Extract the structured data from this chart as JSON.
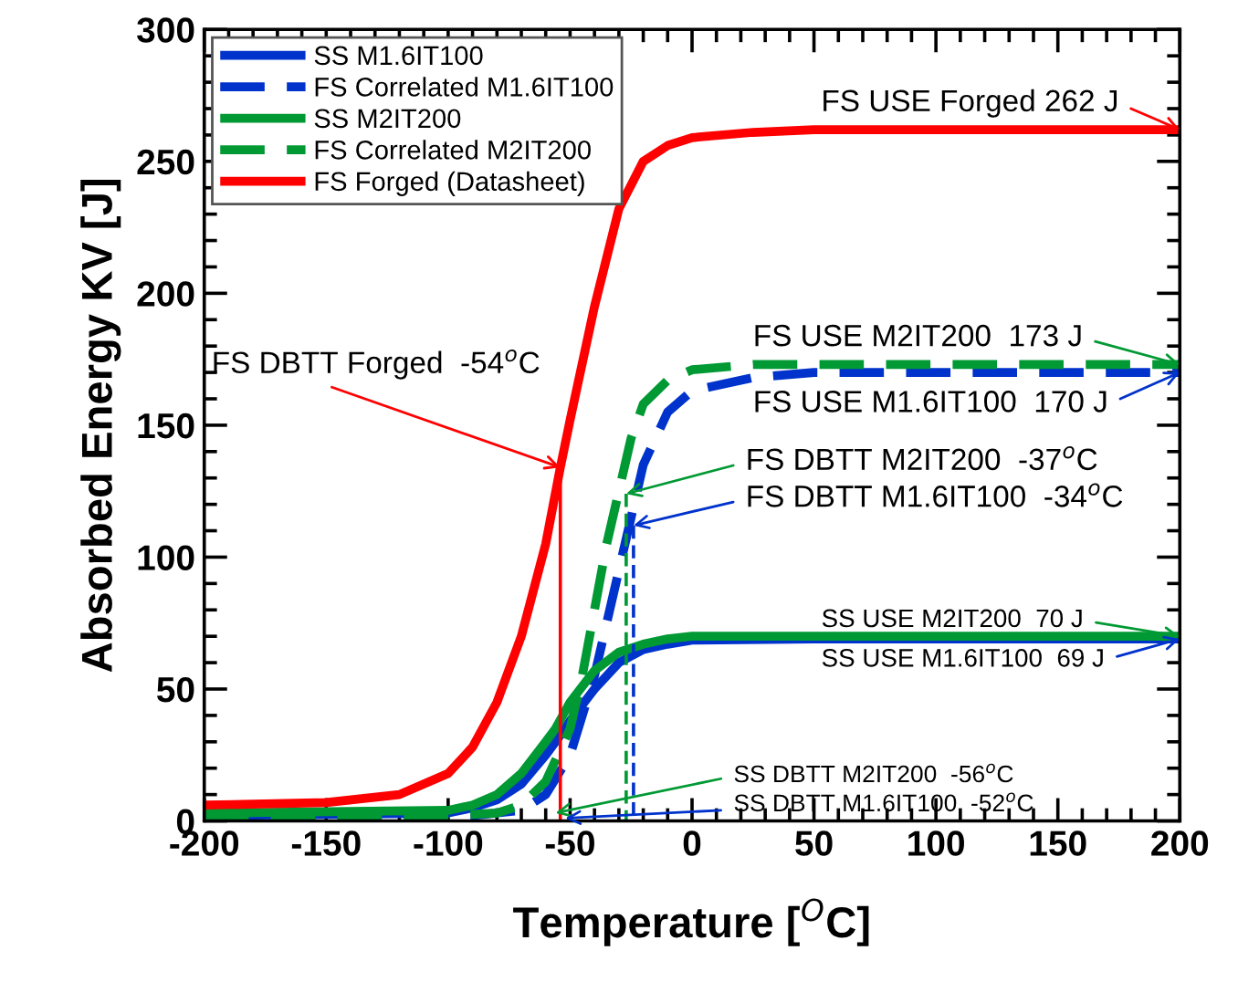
{
  "chart_data": {
    "type": "line",
    "xlabel": "Temperature [$^{O}$C]",
    "ylabel": "Absorbed Energy KV [J]",
    "xlim": [
      -200,
      200
    ],
    "ylim": [
      0,
      300
    ],
    "xticks": [
      -200,
      -150,
      -100,
      -50,
      0,
      50,
      100,
      150,
      200
    ],
    "yticks": [
      0,
      50,
      100,
      150,
      200,
      250,
      300
    ],
    "grid": false,
    "legend": "top left",
    "marker": "none",
    "series": [
      {
        "name": "SS M1.6IT100",
        "color": "#0033cc",
        "line_style": "solid",
        "x": [
          -200,
          -100,
          -90,
          -80,
          -70,
          -60,
          -52,
          -50,
          -40,
          -30,
          -20,
          -10,
          0,
          50,
          200
        ],
        "values": [
          2,
          3,
          5,
          8,
          14,
          25,
          35,
          38,
          50,
          60,
          65,
          67,
          68.5,
          69,
          69
        ]
      },
      {
        "name": "FS Correlated M1.6IT100",
        "color": "#0033cc",
        "line_style": "dashed",
        "x": [
          -200,
          -90,
          -70,
          -60,
          -50,
          -40,
          -35,
          -30,
          -25,
          -20,
          -10,
          0,
          25,
          50,
          200
        ],
        "values": [
          2,
          2,
          4,
          10,
          25,
          55,
          75,
          95,
          115,
          135,
          155,
          163,
          168,
          170,
          170
        ]
      },
      {
        "name": "SS M2IT200",
        "color": "#009933",
        "line_style": "solid",
        "x": [
          -200,
          -100,
          -90,
          -80,
          -70,
          -60,
          -56,
          -50,
          -40,
          -30,
          -20,
          -10,
          0,
          50,
          200
        ],
        "values": [
          3,
          4,
          6,
          10,
          18,
          30,
          35,
          45,
          57,
          64,
          67,
          69,
          70,
          70,
          70
        ]
      },
      {
        "name": "FS Correlated M2IT200",
        "color": "#009933",
        "line_style": "dashed",
        "x": [
          -200,
          -100,
          -80,
          -70,
          -60,
          -50,
          -45,
          -40,
          -35,
          -30,
          -25,
          -20,
          -10,
          0,
          25,
          50,
          200
        ],
        "values": [
          2,
          2,
          3,
          6,
          15,
          35,
          55,
          80,
          105,
          125,
          145,
          158,
          167,
          171,
          173,
          173,
          173
        ]
      },
      {
        "name": "FS Forged (Datasheet)",
        "color": "#ff0000",
        "line_style": "solid",
        "x": [
          -200,
          -150,
          -120,
          -100,
          -90,
          -80,
          -70,
          -60,
          -54,
          -50,
          -40,
          -30,
          -20,
          -10,
          0,
          25,
          50,
          100,
          200
        ],
        "values": [
          6,
          7,
          10,
          18,
          28,
          45,
          70,
          105,
          134,
          152,
          195,
          232,
          250,
          256,
          259,
          261,
          262,
          262,
          262
        ]
      },
      {
        "color": "#ff0000",
        "line_style": "solid",
        "x": [
          -54,
          -54
        ],
        "values": [
          134,
          0
        ]
      },
      {
        "color": "#009933",
        "line_style": "dashed",
        "x": [
          -27,
          -27
        ],
        "values": [
          124,
          0
        ]
      },
      {
        "color": "#0033cc",
        "line_style": "dashed",
        "x": [
          -24,
          -24
        ],
        "values": [
          112,
          0
        ]
      }
    ],
    "annotations": [
      {
        "text": "FS USE Forged 262 J",
        "x": 200,
        "y": 262
      },
      {
        "text": "FS DBTT Forged  -54$^{o}$C",
        "x": -54,
        "y": 134
      },
      {
        "text": "FS USE M2IT200  173 J",
        "x": 200,
        "y": 173
      },
      {
        "text": "FS USE M1.6IT100  170 J",
        "x": 200,
        "y": 170
      },
      {
        "text": "FS DBTT M2IT200  -37$^{o}$C",
        "x": -27,
        "y": 124
      },
      {
        "text": "FS DBTT M1.6IT100  -34$^{o}$C",
        "x": -24,
        "y": 112
      },
      {
        "text": "SS USE M2IT200  70 J",
        "x": 200,
        "y": 70
      },
      {
        "text": "SS USE M1.6IT100  69 J",
        "x": 200,
        "y": 69
      },
      {
        "text": "SS DBTT M2IT200  -56$^{o}$C",
        "x": -56,
        "y": 3
      },
      {
        "text": "SS DBTT M1.6IT100  -52$^{o}$C",
        "x": -52,
        "y": 1
      }
    ]
  }
}
